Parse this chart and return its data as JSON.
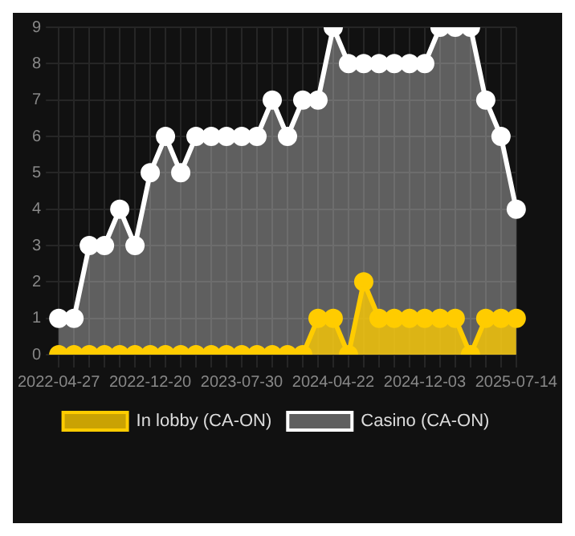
{
  "chart_data": {
    "type": "area",
    "categories": [
      "2022-04-27",
      null,
      null,
      null,
      null,
      null,
      "2022-12-20",
      null,
      null,
      null,
      null,
      null,
      "2023-07-30",
      null,
      null,
      null,
      null,
      null,
      "2024-04-22",
      null,
      null,
      null,
      null,
      null,
      "2024-12-03",
      null,
      null,
      null,
      null,
      null,
      "2025-07-14"
    ],
    "series": [
      {
        "name": "In lobby (CA-ON)",
        "color": "#ffcc00",
        "values": [
          0,
          0,
          0,
          0,
          0,
          0,
          0,
          0,
          0,
          0,
          0,
          0,
          0,
          0,
          0,
          0,
          0,
          1,
          1,
          0,
          2,
          1,
          1,
          1,
          1,
          1,
          1,
          0,
          1,
          1,
          1
        ]
      },
      {
        "name": "Casino (CA-ON)",
        "color": "#ffffff",
        "values": [
          1,
          1,
          3,
          3,
          4,
          3,
          5,
          6,
          5,
          6,
          6,
          6,
          6,
          6,
          7,
          6,
          7,
          7,
          9,
          8,
          8,
          8,
          8,
          8,
          8,
          9,
          9,
          9,
          7,
          6,
          4
        ]
      }
    ],
    "ylim": [
      0,
      9
    ],
    "yticks": [
      0,
      1,
      2,
      3,
      4,
      5,
      6,
      7,
      8,
      9
    ],
    "grid": true,
    "legend": "bottom",
    "marker": "circle",
    "line_style": "solid"
  }
}
